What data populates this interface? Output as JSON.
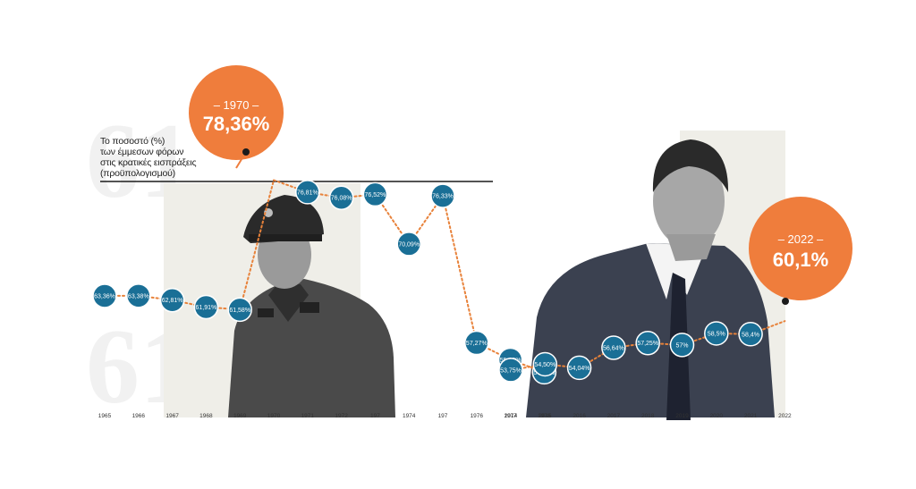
{
  "chart_data": {
    "type": "line",
    "title_lines": [
      "Το ποσοστό (%)",
      "των έμμεσων φόρων",
      "στις κρατικές εισπράξεις",
      "(προϋπολογισμού)"
    ],
    "xlabel": "",
    "ylabel": "",
    "ylim": [
      50,
      80
    ],
    "grid": false,
    "legend": "none",
    "colors": {
      "point": "#1a6f96",
      "connector": "#e8823a",
      "highlight": "#ef7d3c",
      "band": "#efeee8"
    },
    "series": [
      {
        "x": [
          "1965",
          "1966",
          "1967",
          "1968",
          "1969",
          "1970",
          "1971",
          "1972",
          "1973",
          "1974",
          "1975",
          "1976",
          "1977",
          "1978"
        ],
        "values": [
          63.36,
          63.38,
          62.81,
          61.91,
          61.58,
          78.36,
          76.81,
          76.08,
          76.52,
          70.09,
          76.33,
          57.27,
          55.08,
          53.46
        ],
        "labels": [
          "63,36%",
          "63,38%",
          "62,81%",
          "61,91%",
          "61,58%",
          "",
          "76,81%",
          "76,08%",
          "76,52%",
          "70,09%",
          "76,33%",
          "57,27%",
          "55,08%",
          "53,46%"
        ],
        "tick_labels": [
          "1965",
          "1966",
          "1967",
          "1968",
          "1969",
          "1970",
          "1971",
          "1972",
          "197",
          "1974",
          "197",
          "1976",
          "1977",
          "1978"
        ]
      },
      {
        "x": [
          "2014",
          "2015",
          "2016",
          "2017",
          "2018",
          "2019",
          "2020",
          "2021",
          "2022"
        ],
        "values": [
          53.75,
          54.5,
          54.04,
          56.64,
          57.25,
          57,
          58.5,
          58.4,
          60.1
        ],
        "labels": [
          "53,75%",
          "54,50%",
          "54,04%",
          "56,64%",
          "57,25%",
          "57%",
          "58,5%",
          "58,4%",
          ""
        ],
        "tick_labels": [
          "2014",
          "2015",
          "2016",
          "2017",
          "2018",
          "2019",
          "2020",
          "2021",
          "2022"
        ]
      }
    ],
    "annotations": [
      {
        "year": "– 1970 –",
        "value": "78,36%"
      },
      {
        "year": "– 2022 –",
        "value": "60,1%"
      }
    ]
  }
}
